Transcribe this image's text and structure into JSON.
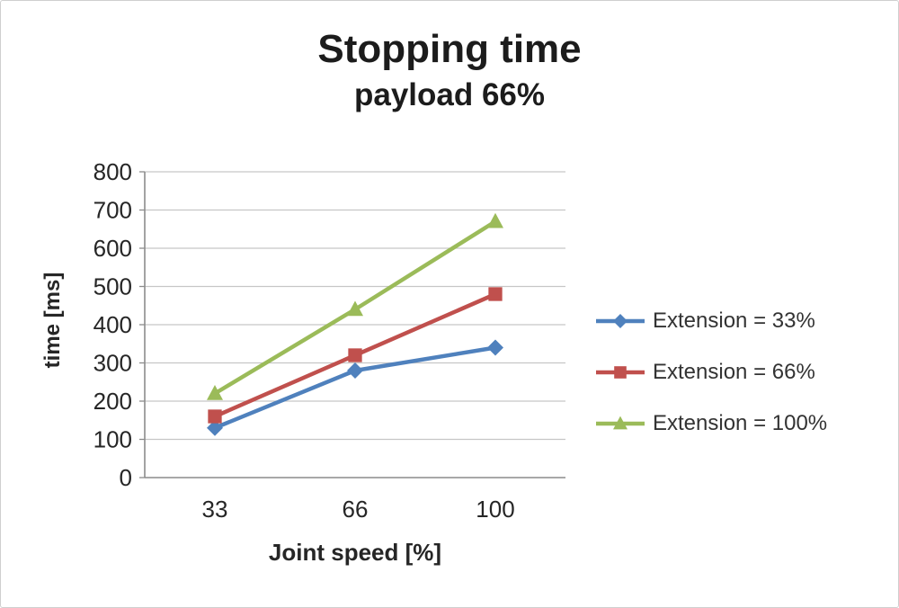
{
  "title": "Stopping time",
  "subtitle": "payload 66%",
  "chart_data": {
    "type": "line",
    "categories": [
      "33",
      "66",
      "100"
    ],
    "series": [
      {
        "name": "Extension = 33%",
        "color": "#4F81BD",
        "marker": "diamond",
        "values": [
          130,
          280,
          340
        ]
      },
      {
        "name": "Extension = 66%",
        "color": "#C0504D",
        "marker": "square",
        "values": [
          160,
          320,
          480
        ]
      },
      {
        "name": "Extension = 100%",
        "color": "#9BBB59",
        "marker": "triangle",
        "values": [
          220,
          440,
          670
        ]
      }
    ],
    "title": "Stopping time",
    "subtitle": "payload 66%",
    "xlabel": "Joint speed [%]",
    "ylabel": "time [ms]",
    "ylim": [
      0,
      800
    ],
    "ytick_step": 100,
    "grid": true,
    "legend_position": "right"
  },
  "colors": {
    "grid": "#C6C6C6",
    "axis": "#8C8C8C",
    "tick_text": "#262626",
    "title_text": "#1C1C1C",
    "legend_text": "#333333",
    "background": "#FFFFFF"
  }
}
